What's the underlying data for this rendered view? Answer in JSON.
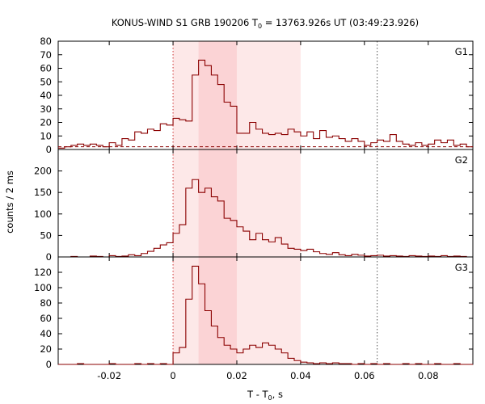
{
  "chart_data": {
    "type": "line",
    "title": "KONUS-WIND S1 GRB 190206 T",
    "title_sub": "0",
    "title_rest": " = 13763.926s UT (03:49:23.926)",
    "xlabel": "T - T",
    "xlabel_sub": "0",
    "xlabel_rest": ", s",
    "ylabel": "counts / 2 ms",
    "xlim": [
      -0.036,
      0.094
    ],
    "xticks": [
      {
        "v": -0.02,
        "label": "-0.02"
      },
      {
        "v": 0,
        "label": "0"
      },
      {
        "v": 0.02,
        "label": "0.02"
      },
      {
        "v": 0.04,
        "label": "0.04"
      },
      {
        "v": 0.06,
        "label": "0.06"
      },
      {
        "v": 0.08,
        "label": "0.08"
      }
    ],
    "shaded_intervals": [
      {
        "x0": 0.0,
        "x1": 0.04,
        "color": "#fde8e8"
      },
      {
        "x0": 0.008,
        "x1": 0.02,
        "color": "#fbd3d5"
      }
    ],
    "vlines": [
      {
        "x": 0.0,
        "color": "#cc3333"
      },
      {
        "x": 0.064,
        "color": "#555555"
      }
    ],
    "bin_width": 0.002,
    "series_color": "#8b0000",
    "panels": [
      {
        "label": "G1",
        "ylim": [
          0,
          80
        ],
        "yticks": [
          0,
          10,
          20,
          30,
          40,
          50,
          60,
          70,
          80
        ],
        "background": 2,
        "x": [
          -0.036,
          -0.034,
          -0.032,
          -0.03,
          -0.028,
          -0.026,
          -0.024,
          -0.022,
          -0.02,
          -0.018,
          -0.016,
          -0.014,
          -0.012,
          -0.01,
          -0.008,
          -0.006,
          -0.004,
          -0.002,
          0.0,
          0.002,
          0.004,
          0.006,
          0.008,
          0.01,
          0.012,
          0.014,
          0.016,
          0.018,
          0.02,
          0.022,
          0.024,
          0.026,
          0.028,
          0.03,
          0.032,
          0.034,
          0.036,
          0.038,
          0.04,
          0.042,
          0.044,
          0.046,
          0.048,
          0.05,
          0.052,
          0.054,
          0.056,
          0.058,
          0.06,
          0.062,
          0.064,
          0.066,
          0.068,
          0.07,
          0.072,
          0.074,
          0.076,
          0.078,
          0.08,
          0.082,
          0.084,
          0.086,
          0.088,
          0.09,
          0.092
        ],
        "values": [
          1,
          2,
          3,
          4,
          3,
          4,
          3,
          2,
          5,
          3,
          8,
          7,
          13,
          12,
          15,
          14,
          19,
          18,
          23,
          22,
          21,
          55,
          66,
          62,
          55,
          48,
          35,
          32,
          12,
          12,
          20,
          15,
          12,
          11,
          12,
          11,
          15,
          13,
          10,
          13,
          8,
          14,
          9,
          10,
          8,
          6,
          8,
          6,
          3,
          5,
          7,
          6,
          11,
          6,
          4,
          3,
          5,
          3,
          4,
          7,
          5,
          7,
          3,
          4,
          2
        ]
      },
      {
        "label": "G2",
        "ylim": [
          0,
          250
        ],
        "yticks": [
          0,
          50,
          100,
          150,
          200
        ],
        "background": 0,
        "x": [
          -0.036,
          -0.034,
          -0.032,
          -0.03,
          -0.028,
          -0.026,
          -0.024,
          -0.022,
          -0.02,
          -0.018,
          -0.016,
          -0.014,
          -0.012,
          -0.01,
          -0.008,
          -0.006,
          -0.004,
          -0.002,
          0.0,
          0.002,
          0.004,
          0.006,
          0.008,
          0.01,
          0.012,
          0.014,
          0.016,
          0.018,
          0.02,
          0.022,
          0.024,
          0.026,
          0.028,
          0.03,
          0.032,
          0.034,
          0.036,
          0.038,
          0.04,
          0.042,
          0.044,
          0.046,
          0.048,
          0.05,
          0.052,
          0.054,
          0.056,
          0.058,
          0.06,
          0.062,
          0.064,
          0.066,
          0.068,
          0.07,
          0.072,
          0.074,
          0.076,
          0.078,
          0.08,
          0.082,
          0.084,
          0.086,
          0.088,
          0.09,
          0.092
        ],
        "values": [
          0,
          0,
          1,
          0,
          0,
          2,
          1,
          0,
          3,
          1,
          2,
          5,
          3,
          8,
          13,
          20,
          28,
          33,
          55,
          75,
          160,
          180,
          150,
          160,
          140,
          130,
          90,
          85,
          70,
          60,
          40,
          55,
          40,
          35,
          45,
          30,
          20,
          18,
          15,
          18,
          12,
          8,
          6,
          10,
          5,
          3,
          6,
          4,
          2,
          3,
          4,
          2,
          3,
          2,
          1,
          3,
          2,
          1,
          2,
          1,
          3,
          1,
          2,
          1,
          0
        ]
      },
      {
        "label": "G3",
        "ylim": [
          0,
          140
        ],
        "yticks": [
          0,
          20,
          40,
          60,
          80,
          100,
          120
        ],
        "background": 0,
        "x": [
          -0.036,
          -0.034,
          -0.032,
          -0.03,
          -0.028,
          -0.026,
          -0.024,
          -0.022,
          -0.02,
          -0.018,
          -0.016,
          -0.014,
          -0.012,
          -0.01,
          -0.008,
          -0.006,
          -0.004,
          -0.002,
          0.0,
          0.002,
          0.004,
          0.006,
          0.008,
          0.01,
          0.012,
          0.014,
          0.016,
          0.018,
          0.02,
          0.022,
          0.024,
          0.026,
          0.028,
          0.03,
          0.032,
          0.034,
          0.036,
          0.038,
          0.04,
          0.042,
          0.044,
          0.046,
          0.048,
          0.05,
          0.052,
          0.054,
          0.056,
          0.058,
          0.06,
          0.062,
          0.064,
          0.066,
          0.068,
          0.07,
          0.072,
          0.074,
          0.076,
          0.078,
          0.08,
          0.082,
          0.084,
          0.086,
          0.088,
          0.09,
          0.092
        ],
        "values": [
          0,
          0,
          0,
          1,
          0,
          0,
          0,
          0,
          1,
          0,
          0,
          0,
          1,
          0,
          1,
          0,
          1,
          0,
          15,
          22,
          85,
          128,
          105,
          70,
          50,
          35,
          25,
          20,
          15,
          20,
          25,
          22,
          28,
          25,
          20,
          15,
          8,
          5,
          3,
          2,
          1,
          2,
          1,
          2,
          1,
          1,
          0,
          1,
          0,
          1,
          0,
          1,
          0,
          0,
          1,
          0,
          1,
          0,
          0,
          1,
          0,
          0,
          1,
          0,
          0
        ]
      }
    ]
  }
}
